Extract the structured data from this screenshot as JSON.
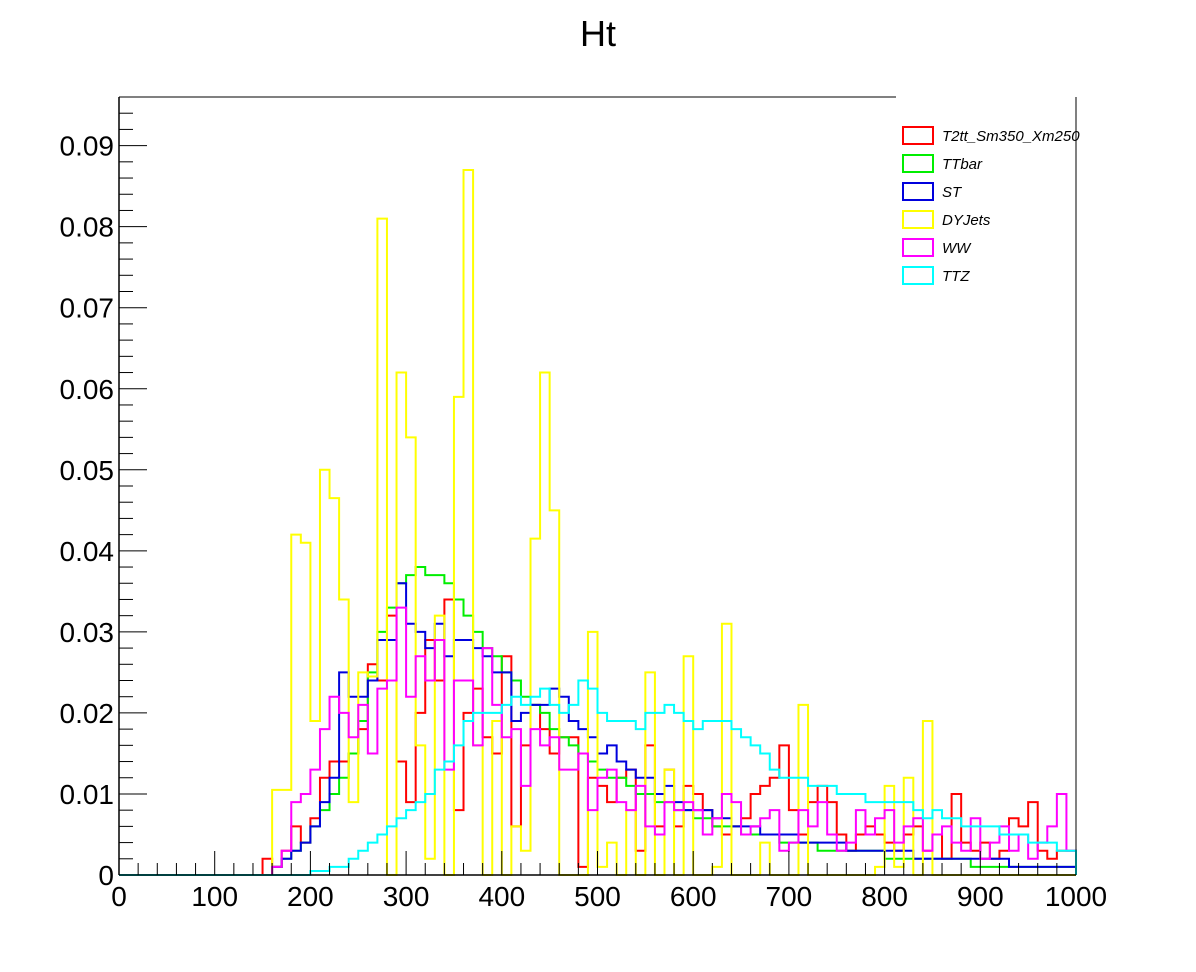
{
  "chart_data": {
    "type": "histogram",
    "title": "Ht",
    "xlabel": "",
    "ylabel": "",
    "xlim": [
      0,
      1000
    ],
    "ylim": [
      0,
      0.096
    ],
    "bin_width": 10,
    "x_ticks": [
      0,
      100,
      200,
      300,
      400,
      500,
      600,
      700,
      800,
      900,
      1000
    ],
    "x_tick_labels": [
      "0",
      "100",
      "200",
      "300",
      "400",
      "500",
      "600",
      "700",
      "800",
      "900",
      "1000"
    ],
    "y_ticks": [
      0,
      0.01,
      0.02,
      0.03,
      0.04,
      0.05,
      0.06,
      0.07,
      0.08,
      0.09
    ],
    "y_tick_labels": [
      "0",
      "0.01",
      "0.02",
      "0.03",
      "0.04",
      "0.05",
      "0.06",
      "0.07",
      "0.08",
      "0.09"
    ],
    "grid": false,
    "legend_position": "top-right",
    "series": [
      {
        "name": "T2tt_Sm350_Xm250",
        "color": "#ff0000",
        "values": [
          0,
          0,
          0,
          0,
          0,
          0,
          0,
          0,
          0,
          0,
          0,
          0,
          0,
          0,
          0,
          0.002,
          0.001,
          0.003,
          0.006,
          0.004,
          0.007,
          0.012,
          0.014,
          0.014,
          0.015,
          0.018,
          0.026,
          0.024,
          0.032,
          0.014,
          0.009,
          0.02,
          0.029,
          0.024,
          0.034,
          0.008,
          0.02,
          0.023,
          0.017,
          0.015,
          0.027,
          0.006,
          0.016,
          0.021,
          0.018,
          0.015,
          0.017,
          0.017,
          0.001,
          0.012,
          0.011,
          0.009,
          0.012,
          0.013,
          0.003,
          0.016,
          0.006,
          0.013,
          0.006,
          0.011,
          0.01,
          0.008,
          0.006,
          0.005,
          0.006,
          0.007,
          0.01,
          0.011,
          0.012,
          0.016,
          0.008,
          0.005,
          0.009,
          0.011,
          0.009,
          0.005,
          0.003,
          0.005,
          0.006,
          0.005,
          0.004,
          0.003,
          0.005,
          0.006,
          0.003,
          0.005,
          0.002,
          0.01,
          0.004,
          0.003,
          0.004,
          0.002,
          0.003,
          0.007,
          0.006,
          0.009,
          0.003,
          0.002,
          0.003,
          0.003
        ]
      },
      {
        "name": "TTbar",
        "color": "#00ee00",
        "values": [
          0,
          0,
          0,
          0,
          0,
          0,
          0,
          0,
          0,
          0,
          0,
          0,
          0,
          0,
          0,
          0,
          0.001,
          0.002,
          0.003,
          0.004,
          0.006,
          0.008,
          0.01,
          0.012,
          0.015,
          0.019,
          0.025,
          0.03,
          0.033,
          0.036,
          0.037,
          0.038,
          0.037,
          0.037,
          0.036,
          0.034,
          0.032,
          0.03,
          0.028,
          0.027,
          0.025,
          0.024,
          0.022,
          0.021,
          0.02,
          0.018,
          0.017,
          0.016,
          0.015,
          0.014,
          0.013,
          0.012,
          0.012,
          0.011,
          0.01,
          0.01,
          0.009,
          0.009,
          0.008,
          0.008,
          0.007,
          0.007,
          0.006,
          0.006,
          0.006,
          0.005,
          0.005,
          0.005,
          0.005,
          0.004,
          0.004,
          0.004,
          0.004,
          0.003,
          0.003,
          0.003,
          0.003,
          0.003,
          0.003,
          0.003,
          0.002,
          0.002,
          0.002,
          0.002,
          0.002,
          0.002,
          0.002,
          0.002,
          0.002,
          0.001,
          0.001,
          0.001,
          0.001,
          0.001,
          0.001,
          0.001,
          0.001,
          0.001,
          0.001,
          0.001
        ]
      },
      {
        "name": "ST",
        "color": "#0000dd",
        "values": [
          0,
          0,
          0,
          0,
          0,
          0,
          0,
          0,
          0,
          0,
          0,
          0,
          0,
          0,
          0,
          0,
          0.001,
          0.002,
          0.003,
          0.004,
          0.006,
          0.009,
          0.012,
          0.025,
          0.022,
          0.022,
          0.024,
          0.029,
          0.029,
          0.036,
          0.031,
          0.03,
          0.028,
          0.031,
          0.027,
          0.029,
          0.029,
          0.028,
          0.027,
          0.025,
          0.025,
          0.019,
          0.02,
          0.021,
          0.021,
          0.023,
          0.022,
          0.019,
          0.018,
          0.017,
          0.015,
          0.016,
          0.014,
          0.013,
          0.012,
          0.012,
          0.01,
          0.011,
          0.009,
          0.008,
          0.008,
          0.008,
          0.007,
          0.007,
          0.006,
          0.006,
          0.006,
          0.005,
          0.005,
          0.005,
          0.005,
          0.004,
          0.004,
          0.004,
          0.004,
          0.004,
          0.003,
          0.003,
          0.003,
          0.003,
          0.003,
          0.003,
          0.003,
          0.002,
          0.002,
          0.002,
          0.002,
          0.002,
          0.002,
          0.002,
          0.002,
          0.002,
          0.002,
          0.001,
          0.001,
          0.001,
          0.001,
          0.001,
          0.001,
          0.001
        ]
      },
      {
        "name": "DYJets",
        "color": "#ffff00",
        "values": [
          0,
          0,
          0,
          0,
          0,
          0,
          0,
          0,
          0,
          0,
          0,
          0,
          0,
          0,
          0,
          0,
          0.0105,
          0.0105,
          0.042,
          0.041,
          0.019,
          0.05,
          0.0465,
          0.034,
          0.009,
          0.025,
          0.0245,
          0.081,
          0.0,
          0.062,
          0.054,
          0.016,
          0.002,
          0.032,
          0.0,
          0.059,
          0.087,
          0.016,
          0.0,
          0.019,
          0.0,
          0.006,
          0.003,
          0.0415,
          0.062,
          0.045,
          0.0,
          0.0,
          0.0,
          0.03,
          0.001,
          0.004,
          0.0,
          0.008,
          0.0,
          0.025,
          0.0,
          0.013,
          0.0,
          0.027,
          0.0,
          0.0,
          0.001,
          0.031,
          0.0,
          0.0,
          0.0,
          0.004,
          0.0,
          0.0,
          0.0,
          0.021,
          0.0,
          0.0,
          0.0,
          0.0,
          0.0,
          0.0,
          0.0,
          0.001,
          0.011,
          0.001,
          0.012,
          0.0,
          0.019,
          0.0,
          0.0,
          0.0,
          0.0,
          0.0,
          0.0,
          0.0,
          0.0,
          0.0,
          0.0,
          0.0,
          0.0,
          0.0,
          0.0,
          0.0
        ]
      },
      {
        "name": "WW",
        "color": "#ff00ff",
        "values": [
          0,
          0,
          0,
          0,
          0,
          0,
          0,
          0,
          0,
          0,
          0,
          0,
          0,
          0,
          0,
          0,
          0.001,
          0.003,
          0.009,
          0.01,
          0.013,
          0.018,
          0.022,
          0.02,
          0.017,
          0.021,
          0.015,
          0.023,
          0.024,
          0.033,
          0.022,
          0.027,
          0.024,
          0.029,
          0.013,
          0.024,
          0.024,
          0.016,
          0.028,
          0.021,
          0.017,
          0.018,
          0.011,
          0.018,
          0.016,
          0.017,
          0.013,
          0.013,
          0.015,
          0.008,
          0.012,
          0.013,
          0.009,
          0.008,
          0.011,
          0.006,
          0.005,
          0.009,
          0.008,
          0.009,
          0.008,
          0.005,
          0.007,
          0.01,
          0.009,
          0.005,
          0.006,
          0.007,
          0.008,
          0.003,
          0.004,
          0.008,
          0.006,
          0.009,
          0.005,
          0.003,
          0.004,
          0.008,
          0.005,
          0.007,
          0.008,
          0.004,
          0.006,
          0.007,
          0.003,
          0.005,
          0.006,
          0.004,
          0.003,
          0.007,
          0.002,
          0.004,
          0.006,
          0.003,
          0.005,
          0.002,
          0.004,
          0.006,
          0.01,
          0.003
        ]
      },
      {
        "name": "TTZ",
        "color": "#00ffff",
        "values": [
          0,
          0,
          0,
          0,
          0,
          0,
          0,
          0,
          0,
          0,
          0,
          0,
          0,
          0,
          0,
          0,
          0,
          0,
          0,
          0,
          0.0005,
          0.0005,
          0.001,
          0.001,
          0.002,
          0.003,
          0.004,
          0.005,
          0.006,
          0.007,
          0.008,
          0.009,
          0.01,
          0.013,
          0.014,
          0.016,
          0.019,
          0.02,
          0.02,
          0.02,
          0.021,
          0.022,
          0.021,
          0.022,
          0.023,
          0.021,
          0.02,
          0.021,
          0.024,
          0.023,
          0.02,
          0.019,
          0.019,
          0.019,
          0.018,
          0.02,
          0.02,
          0.021,
          0.02,
          0.019,
          0.018,
          0.019,
          0.019,
          0.019,
          0.018,
          0.017,
          0.016,
          0.015,
          0.013,
          0.012,
          0.012,
          0.012,
          0.011,
          0.011,
          0.011,
          0.01,
          0.01,
          0.01,
          0.009,
          0.009,
          0.009,
          0.009,
          0.009,
          0.008,
          0.007,
          0.008,
          0.007,
          0.007,
          0.006,
          0.006,
          0.006,
          0.006,
          0.005,
          0.005,
          0.005,
          0.004,
          0.004,
          0.004,
          0.003,
          0.003
        ]
      }
    ]
  }
}
